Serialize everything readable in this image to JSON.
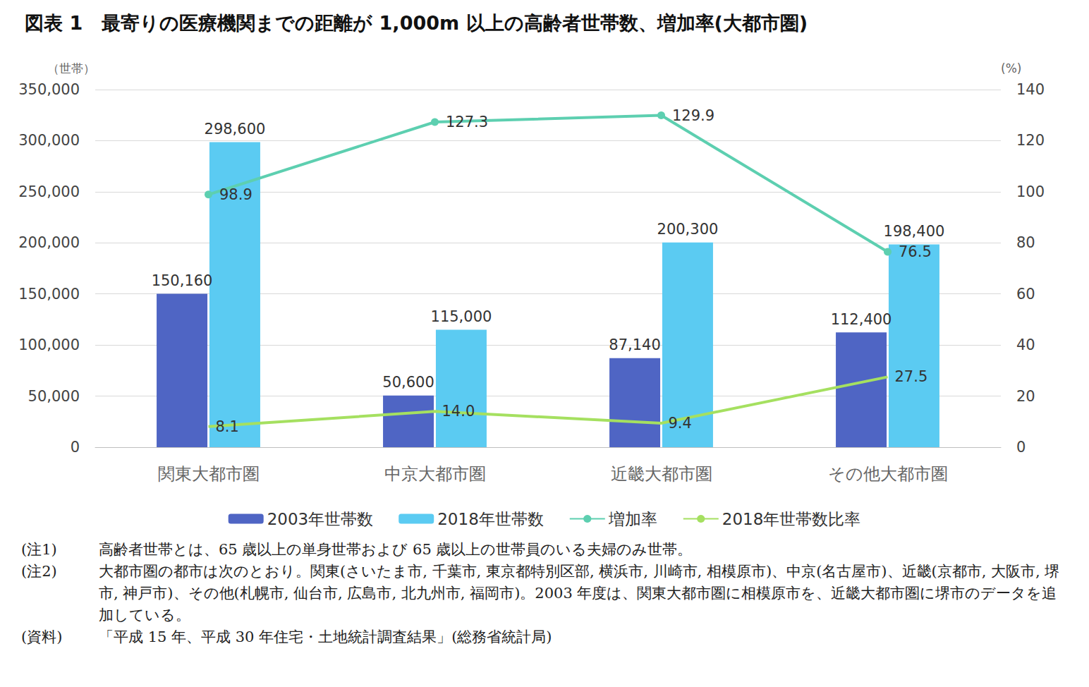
{
  "chart_data": {
    "type": "bar",
    "title": "図表 1　最寄りの医療機関までの距離が 1,000m 以上の高齢者世帯数、増加率(大都市圏)",
    "ylabel": "（世帯）",
    "y2label": "(%)",
    "categories": [
      "関東大都市圏",
      "中京大都市圏",
      "近畿大都市圏",
      "その他大都市圏"
    ],
    "series": [
      {
        "name": "2003年世帯数",
        "type": "bar",
        "color": "#4f65c4",
        "values": [
          150160,
          50600,
          87140,
          112400
        ],
        "value_labels": [
          "150,160",
          "50,600",
          "87,140",
          "112,400"
        ]
      },
      {
        "name": "2018年世帯数",
        "type": "bar",
        "color": "#5bcbf2",
        "values": [
          298600,
          115000,
          200300,
          198400
        ],
        "value_labels": [
          "298,600",
          "115,000",
          "200,300",
          "198,400"
        ]
      },
      {
        "name": "増加率",
        "type": "line",
        "axis": "y2",
        "color": "#5dcfb0",
        "marker": "circle",
        "values": [
          98.9,
          127.3,
          129.9,
          76.5
        ],
        "value_labels": [
          "98.9",
          "127.3",
          "129.9",
          "76.5"
        ]
      },
      {
        "name": "2018年世帯数比率",
        "type": "line",
        "axis": "y2",
        "color": "#a5e060",
        "marker": "none",
        "values": [
          8.1,
          14.0,
          9.4,
          27.5
        ],
        "value_labels": [
          "8.1",
          "14.0",
          "9.4",
          "27.5"
        ]
      }
    ],
    "ylim": [
      0,
      350000
    ],
    "yticks": [
      0,
      {
        "value": 50000,
        "label": "50,000"
      },
      {
        "value": 100000,
        "label": "100,000"
      },
      {
        "value": 150000,
        "label": "150,000"
      },
      {
        "value": 200000,
        "label": "200,000"
      },
      {
        "value": 250000,
        "label": "250,000"
      },
      {
        "value": 300000,
        "label": "300,000"
      },
      {
        "value": 350000,
        "label": "350,000"
      }
    ],
    "y2lim": [
      0,
      140
    ],
    "y2ticks": [
      0,
      20,
      40,
      60,
      80,
      100,
      120,
      140
    ],
    "grid": true,
    "legend": "bottom",
    "data_labels": true,
    "notes": [
      {
        "label": "(注1)",
        "text": "高齢者世帯とは、65 歳以上の単身世帯および 65 歳以上の世帯員のいる夫婦のみ世帯。"
      },
      {
        "label": "(注2)",
        "text": "大都市圏の都市は次のとおり。関東(さいたま市, 千葉市, 東京都特別区部, 横浜市, 川崎市, 相模原市)、中京(名古屋市)、近畿(京都市, 大阪市, 堺市, 神戸市)、その他(札幌市, 仙台市, 広島市, 北九州市, 福岡市)。2003 年度は、関東大都市圏に相模原市を、近畿大都市圏に堺市のデータを追加している。"
      },
      {
        "label": "(資料)",
        "text": "「平成 15 年、平成 30 年住宅・土地統計調査結果」(総務省統計局)"
      }
    ]
  }
}
